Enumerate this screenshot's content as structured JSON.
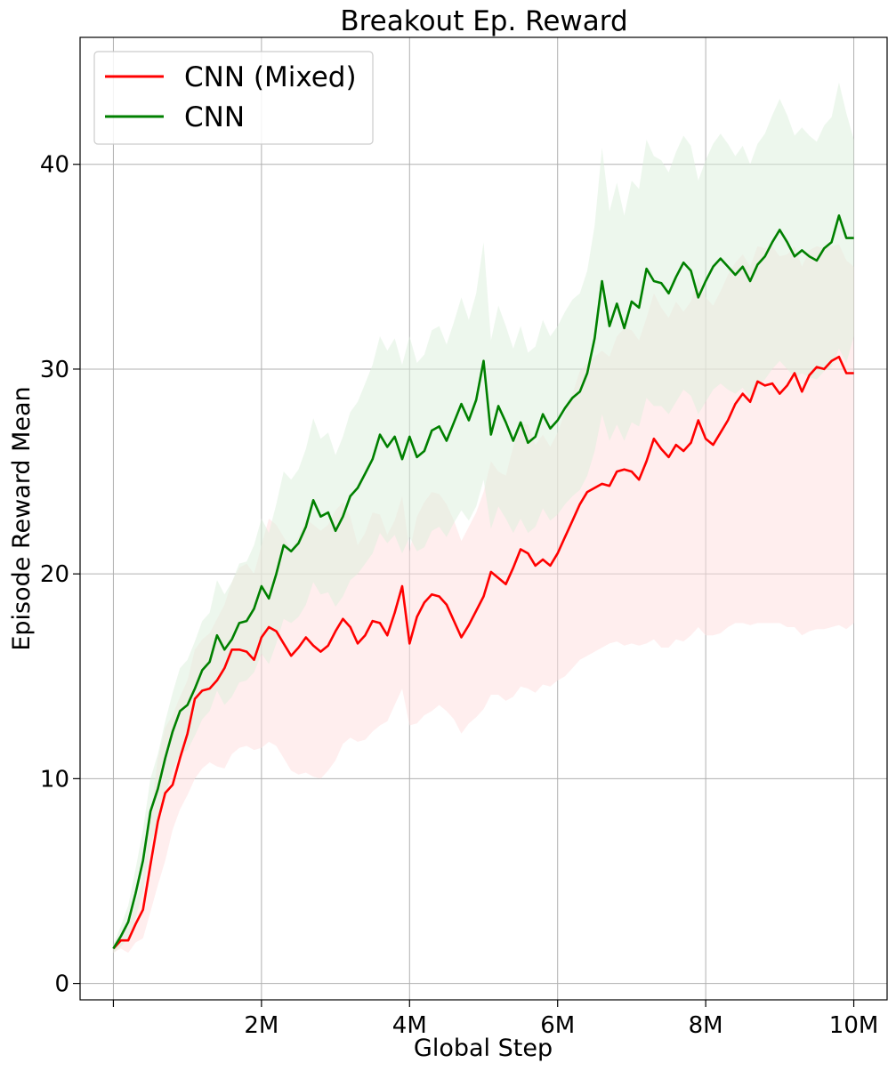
{
  "chart_data": {
    "type": "line",
    "title": "Breakout Ep. Reward",
    "xlabel": "Global Step",
    "ylabel": "Episode Reward Mean",
    "xlim": [
      -450000,
      10450000
    ],
    "ylim": [
      -0.8,
      46.2
    ],
    "grid": true,
    "legend_position": "top-left",
    "x_ticks": [
      0,
      2000000,
      4000000,
      6000000,
      8000000,
      10000000
    ],
    "x_tick_labels": [
      "",
      "2M",
      "4M",
      "6M",
      "8M",
      "10M"
    ],
    "y_ticks": [
      0,
      10,
      20,
      30,
      40
    ],
    "y_tick_labels": [
      "0",
      "10",
      "20",
      "30",
      "40"
    ],
    "series": [
      {
        "name": "CNN (Mixed)",
        "color": "#ff0000",
        "band_color": "#ffdede",
        "x": [
          0,
          100000,
          200000,
          300000,
          400000,
          500000,
          600000,
          700000,
          800000,
          900000,
          1000000,
          1100000,
          1200000,
          1300000,
          1400000,
          1500000,
          1600000,
          1700000,
          1800000,
          1900000,
          2000000,
          2100000,
          2200000,
          2300000,
          2400000,
          2500000,
          2600000,
          2700000,
          2800000,
          2900000,
          3000000,
          3100000,
          3200000,
          3300000,
          3400000,
          3500000,
          3600000,
          3700000,
          3800000,
          3900000,
          4000000,
          4100000,
          4200000,
          4300000,
          4400000,
          4500000,
          4600000,
          4700000,
          4800000,
          4900000,
          5000000,
          5100000,
          5200000,
          5300000,
          5400000,
          5500000,
          5600000,
          5700000,
          5800000,
          5900000,
          6000000,
          6100000,
          6200000,
          6300000,
          6400000,
          6500000,
          6600000,
          6700000,
          6800000,
          6900000,
          7000000,
          7100000,
          7200000,
          7300000,
          7400000,
          7500000,
          7600000,
          7700000,
          7800000,
          7900000,
          8000000,
          8100000,
          8200000,
          8300000,
          8400000,
          8500000,
          8600000,
          8700000,
          8800000,
          8900000,
          9000000,
          9100000,
          9200000,
          9300000,
          9400000,
          9500000,
          9600000,
          9700000,
          9800000,
          9900000,
          10000000
        ],
        "values": [
          1.7,
          2.1,
          2.1,
          2.9,
          3.6,
          5.8,
          7.9,
          9.3,
          9.7,
          11.0,
          12.2,
          13.9,
          14.3,
          14.4,
          14.8,
          15.4,
          16.3,
          16.3,
          16.2,
          15.8,
          16.9,
          17.4,
          17.2,
          16.6,
          16.0,
          16.4,
          16.9,
          16.5,
          16.2,
          16.5,
          17.2,
          17.8,
          17.4,
          16.6,
          17.0,
          17.7,
          17.6,
          17.0,
          18.1,
          19.4,
          16.6,
          17.9,
          18.6,
          19.0,
          18.9,
          18.5,
          17.7,
          16.9,
          17.5,
          18.2,
          18.9,
          20.1,
          19.8,
          19.5,
          20.3,
          21.2,
          21.0,
          20.4,
          20.7,
          20.4,
          21.0,
          21.8,
          22.6,
          23.4,
          24.0,
          24.2,
          24.4,
          24.3,
          25.0,
          25.1,
          25.0,
          24.6,
          25.5,
          26.6,
          26.1,
          25.7,
          26.3,
          26.0,
          26.4,
          27.5,
          26.6,
          26.3,
          26.9,
          27.5,
          28.3,
          28.8,
          28.4,
          29.4,
          29.2,
          29.3,
          28.8,
          29.2,
          29.8,
          28.9,
          29.7,
          30.1,
          30.0,
          30.4,
          30.6,
          29.8,
          29.8
        ],
        "band_lower": [
          1.5,
          1.7,
          1.5,
          2.0,
          2.2,
          3.5,
          4.8,
          6.0,
          7.5,
          8.5,
          9.2,
          10.0,
          10.5,
          10.8,
          10.6,
          10.5,
          11.2,
          11.5,
          11.6,
          11.4,
          11.5,
          11.8,
          11.6,
          11.0,
          10.4,
          10.2,
          10.3,
          10.1,
          10.0,
          10.4,
          10.9,
          11.7,
          12.0,
          11.8,
          11.9,
          12.3,
          12.6,
          12.8,
          13.6,
          14.4,
          12.6,
          12.7,
          13.1,
          13.3,
          13.6,
          13.3,
          12.9,
          12.2,
          12.7,
          13.0,
          13.4,
          14.1,
          14.1,
          13.8,
          14.0,
          14.5,
          14.4,
          14.2,
          14.6,
          14.5,
          14.8,
          15.0,
          15.4,
          15.8,
          16.0,
          16.2,
          16.4,
          16.6,
          16.7,
          16.5,
          16.6,
          16.5,
          16.6,
          16.8,
          16.4,
          16.4,
          16.8,
          16.7,
          17.0,
          17.4,
          17.0,
          17.0,
          17.1,
          17.4,
          17.6,
          17.6,
          17.5,
          17.6,
          17.6,
          17.6,
          17.6,
          17.4,
          17.4,
          17.0,
          17.2,
          17.3,
          17.3,
          17.4,
          17.5,
          17.3,
          17.6
        ],
        "band_upper": [
          1.9,
          2.3,
          2.8,
          3.9,
          5.2,
          8.2,
          11.0,
          12.5,
          13.1,
          14.0,
          14.8,
          16.3,
          16.8,
          17.1,
          17.8,
          18.5,
          19.6,
          20.3,
          20.5,
          20.0,
          21.4,
          22.7,
          22.4,
          21.8,
          21.2,
          21.8,
          22.7,
          22.4,
          22.1,
          22.4,
          23.1,
          23.5,
          22.8,
          21.4,
          22.0,
          23.0,
          22.9,
          21.9,
          22.6,
          23.8,
          21.1,
          22.8,
          23.5,
          24.0,
          23.9,
          23.4,
          22.6,
          21.6,
          22.3,
          23.0,
          24.0,
          25.5,
          25.0,
          24.8,
          26.2,
          27.3,
          27.3,
          26.3,
          26.8,
          26.2,
          26.9,
          27.9,
          28.8,
          29.9,
          30.3,
          30.6,
          30.9,
          30.6,
          31.6,
          32.0,
          31.9,
          31.4,
          32.5,
          33.7,
          33.0,
          32.5,
          33.3,
          32.8,
          33.3,
          34.5,
          33.5,
          33.1,
          33.8,
          34.6,
          35.2,
          35.6,
          35.0,
          36.0,
          35.9,
          36.0,
          35.5,
          35.6,
          36.0,
          35.0,
          35.8,
          36.0,
          35.9,
          36.0,
          36.1,
          35.3,
          35.0
        ]
      },
      {
        "name": "CNN",
        "color": "#008000",
        "band_color": "#dcefdc",
        "x": [
          0,
          100000,
          200000,
          300000,
          400000,
          500000,
          600000,
          700000,
          800000,
          900000,
          1000000,
          1100000,
          1200000,
          1300000,
          1400000,
          1500000,
          1600000,
          1700000,
          1800000,
          1900000,
          2000000,
          2100000,
          2200000,
          2300000,
          2400000,
          2500000,
          2600000,
          2700000,
          2800000,
          2900000,
          3000000,
          3100000,
          3200000,
          3300000,
          3400000,
          3500000,
          3600000,
          3700000,
          3800000,
          3900000,
          4000000,
          4100000,
          4200000,
          4300000,
          4400000,
          4500000,
          4600000,
          4700000,
          4800000,
          4900000,
          5000000,
          5100000,
          5200000,
          5300000,
          5400000,
          5500000,
          5600000,
          5700000,
          5800000,
          5900000,
          6000000,
          6100000,
          6200000,
          6300000,
          6400000,
          6500000,
          6600000,
          6700000,
          6800000,
          6900000,
          7000000,
          7100000,
          7200000,
          7300000,
          7400000,
          7500000,
          7600000,
          7700000,
          7800000,
          7900000,
          8000000,
          8100000,
          8200000,
          8300000,
          8400000,
          8500000,
          8600000,
          8700000,
          8800000,
          8900000,
          9000000,
          9100000,
          9200000,
          9300000,
          9400000,
          9500000,
          9600000,
          9700000,
          9800000,
          9900000,
          10000000
        ],
        "values": [
          1.7,
          2.3,
          3.0,
          4.4,
          6.0,
          8.4,
          9.5,
          11.0,
          12.3,
          13.3,
          13.6,
          14.4,
          15.3,
          15.7,
          17.0,
          16.3,
          16.8,
          17.6,
          17.7,
          18.3,
          19.4,
          18.8,
          20.0,
          21.4,
          21.1,
          21.5,
          22.3,
          23.6,
          22.8,
          23.0,
          22.1,
          22.8,
          23.8,
          24.2,
          24.9,
          25.6,
          26.8,
          26.2,
          26.7,
          25.6,
          26.7,
          25.7,
          26.0,
          27.0,
          27.2,
          26.5,
          27.4,
          28.3,
          27.5,
          28.5,
          30.4,
          26.8,
          28.2,
          27.4,
          26.5,
          27.4,
          26.4,
          26.7,
          27.8,
          27.1,
          27.5,
          28.1,
          28.6,
          28.9,
          29.8,
          31.5,
          34.3,
          32.1,
          33.2,
          32.0,
          33.3,
          33.0,
          34.9,
          34.3,
          34.2,
          33.7,
          34.5,
          35.2,
          34.8,
          33.5,
          34.3,
          35.0,
          35.4,
          35.0,
          34.6,
          35.0,
          34.3,
          35.1,
          35.5,
          36.2,
          36.8,
          36.2,
          35.5,
          35.8,
          35.5,
          35.3,
          35.9,
          36.2,
          37.5,
          36.4,
          36.4
        ],
        "band_lower": [
          1.5,
          1.8,
          2.2,
          3.2,
          4.5,
          6.8,
          7.8,
          9.2,
          10.4,
          11.2,
          11.4,
          12.1,
          12.9,
          13.3,
          14.3,
          13.6,
          14.0,
          14.7,
          14.8,
          15.2,
          16.1,
          15.6,
          16.6,
          17.8,
          17.6,
          17.9,
          18.5,
          19.6,
          19.0,
          19.1,
          18.4,
          18.9,
          19.7,
          20.0,
          20.5,
          21.0,
          22.0,
          21.5,
          21.9,
          21.0,
          21.8,
          21.1,
          21.3,
          22.1,
          22.3,
          21.8,
          22.5,
          23.1,
          22.6,
          23.3,
          24.6,
          22.2,
          23.3,
          22.7,
          22.0,
          22.7,
          22.0,
          22.3,
          23.2,
          22.6,
          22.9,
          23.4,
          23.8,
          24.1,
          24.8,
          26.0,
          27.8,
          26.5,
          27.3,
          26.5,
          27.4,
          27.2,
          28.6,
          28.2,
          28.2,
          27.8,
          28.4,
          29.0,
          28.7,
          27.8,
          28.4,
          29.0,
          29.3,
          29.0,
          28.8,
          29.1,
          28.6,
          29.2,
          29.5,
          30.0,
          30.4,
          30.0,
          29.6,
          29.8,
          29.6,
          29.5,
          29.9,
          30.1,
          31.0,
          30.3,
          31.6
        ],
        "band_upper": [
          1.9,
          2.8,
          3.8,
          5.6,
          7.5,
          10.0,
          11.2,
          12.8,
          14.2,
          15.4,
          15.8,
          16.7,
          17.7,
          18.1,
          19.7,
          19.0,
          19.6,
          20.5,
          20.6,
          21.4,
          22.7,
          22.0,
          23.4,
          25.0,
          24.6,
          25.1,
          26.1,
          27.6,
          26.6,
          26.9,
          25.8,
          26.7,
          27.9,
          28.4,
          29.3,
          30.2,
          31.6,
          30.9,
          31.5,
          30.2,
          31.6,
          30.3,
          30.7,
          31.9,
          32.1,
          31.2,
          32.3,
          33.5,
          32.4,
          33.7,
          36.2,
          31.4,
          33.1,
          32.1,
          31.0,
          32.1,
          30.8,
          31.1,
          32.4,
          31.6,
          32.1,
          32.8,
          33.4,
          33.7,
          34.8,
          37.0,
          40.8,
          37.7,
          39.1,
          37.5,
          39.2,
          38.8,
          41.2,
          40.4,
          40.2,
          39.6,
          40.6,
          41.4,
          40.9,
          39.2,
          40.2,
          41.0,
          41.5,
          41.0,
          40.4,
          40.9,
          40.0,
          41.0,
          41.5,
          42.4,
          43.2,
          42.4,
          41.4,
          41.8,
          41.4,
          41.1,
          41.9,
          42.3,
          44.0,
          42.5,
          41.2
        ]
      }
    ]
  }
}
